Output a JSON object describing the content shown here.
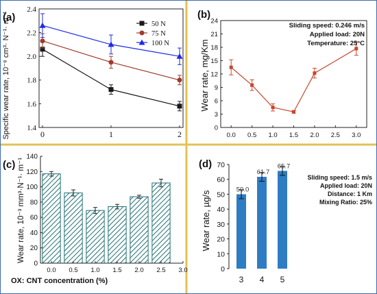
{
  "divider_color": "#e2c254",
  "panels": {
    "a": {
      "label": "(a)",
      "ylabel": "Specific wear rate, 10⁻⁸ cm³· N⁻¹· m⁻¹",
      "xticks": [
        "0",
        "1",
        "2"
      ],
      "yticks": [
        "1.4",
        "1.6",
        "1.8",
        "2.0",
        "2.2",
        "2.4"
      ]
    },
    "b": {
      "label": "(b)",
      "ylabel": "Wear rate, mg/Km",
      "xticks": [
        "0.0",
        "0.5",
        "1.0",
        "1.5",
        "2.0",
        "2.5",
        "3.0"
      ],
      "yticks": [
        "0",
        "3",
        "6",
        "9",
        "12",
        "15",
        "18",
        "21",
        "24"
      ],
      "notes": [
        "Sliding speed: 0.246 m/s",
        "Applied load: 20N",
        "Temperature: 25°C"
      ]
    },
    "c": {
      "label": "(c)",
      "ylabel": "Wear rate, 10⁻³ mm³·N⁻¹· m⁻¹",
      "xticks": [
        "0.0",
        "0.5",
        "1.0",
        "1.5",
        "2.0",
        "2.5",
        "3.0"
      ],
      "yticks": [
        "0",
        "20",
        "40",
        "60",
        "80",
        "100",
        "120",
        "140"
      ],
      "caption": "OX: CNT concentration (%)"
    },
    "d": {
      "label": "(d)",
      "ylabel": "Wear rate, µg/s",
      "xticks": [
        "3",
        "4",
        "5"
      ],
      "yticks": [
        "0",
        "10",
        "20",
        "30",
        "40",
        "50",
        "60",
        "70"
      ],
      "notes": [
        "Sliding speed: 1.5  m/s",
        "Applied load: 20N",
        "Distance: 1 Km",
        "Mixing Ratio: 25%"
      ]
    }
  },
  "chart_data": [
    {
      "panel": "a",
      "type": "line",
      "x": [
        0,
        1,
        2
      ],
      "xlim": [
        -0.05,
        2.05
      ],
      "ylim": [
        1.4,
        2.4
      ],
      "legend_position": "top-right",
      "series": [
        {
          "name": "50 N",
          "values": [
            2.06,
            1.72,
            1.58
          ],
          "errors": [
            0.06,
            0.04,
            0.04
          ],
          "color": "#1a1a1a",
          "marker": "square"
        },
        {
          "name": "75 N",
          "values": [
            2.13,
            1.95,
            1.8
          ],
          "errors": [
            0.06,
            0.05,
            0.04
          ],
          "color": "#a03a2a",
          "marker": "circle"
        },
        {
          "name": "100 N",
          "values": [
            2.26,
            2.1,
            2.0
          ],
          "errors": [
            0.1,
            0.08,
            0.07
          ],
          "color": "#1f2ae6",
          "marker": "triangle"
        }
      ]
    },
    {
      "panel": "b",
      "type": "line",
      "x": [
        0.0,
        0.5,
        1.0,
        1.5,
        2.0,
        3.0
      ],
      "xlim": [
        -0.25,
        3.25
      ],
      "ylim": [
        0,
        24
      ],
      "series": [
        {
          "values": [
            13.5,
            9.5,
            4.5,
            3.5,
            12.2,
            17.7
          ],
          "errors": [
            1.7,
            1.2,
            0.8,
            0.3,
            1.1,
            1.5
          ],
          "color": "#c8452e"
        }
      ]
    },
    {
      "panel": "c",
      "type": "bar",
      "x": [
        0.0,
        0.5,
        1.0,
        1.5,
        2.0,
        2.5
      ],
      "xlim": [
        -0.25,
        3.0
      ],
      "ylim": [
        0,
        140
      ],
      "series": [
        {
          "values": [
            117,
            92,
            69,
            74,
            87,
            105
          ],
          "errors": [
            3,
            4,
            4,
            3,
            2,
            5
          ],
          "color": "#1e6f73"
        }
      ]
    },
    {
      "panel": "d",
      "type": "bar",
      "categories": [
        "3",
        "4",
        "5"
      ],
      "ylim": [
        0,
        70
      ],
      "series": [
        {
          "values": [
            50.0,
            61.7,
            65.7
          ],
          "labels": [
            "50.0",
            "61.7",
            "65.7"
          ],
          "errors": [
            3.0,
            3.0,
            3.0
          ],
          "color": "#2e7cc4"
        }
      ]
    }
  ]
}
